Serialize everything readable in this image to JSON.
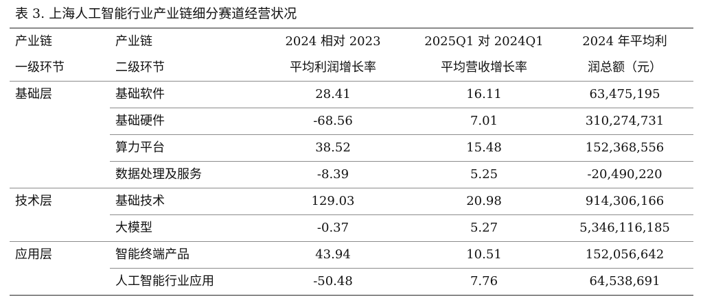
{
  "title": "表 3. 上海人工智能行业产业链细分赛道经营状况",
  "headers": {
    "row1": [
      "产业链",
      "产业链",
      "2024 相对 2023",
      "2025Q1 对 2024Q1",
      "2024 年平均利"
    ],
    "row2": [
      "一级环节",
      "二级环节",
      "平均利润增长率",
      "平均营收增长率",
      "润总额（元）"
    ]
  },
  "rows": [
    [
      "基础层",
      "基础软件",
      "28.41",
      "16.11",
      "63,475,195"
    ],
    [
      "",
      "基础硬件",
      "-68.56",
      "7.01",
      "310,274,731"
    ],
    [
      "",
      "算力平台",
      "38.52",
      "15.48",
      "152,368,556"
    ],
    [
      "",
      "数据处理及服务",
      "-8.39",
      "5.25",
      "-20,490,220"
    ],
    [
      "技术层",
      "基础技术",
      "129.03",
      "20.98",
      "914,306,166"
    ],
    [
      "",
      "大模型",
      "-0.37",
      "5.27",
      "5,346,116,185"
    ],
    [
      "应用层",
      "智能终端产品",
      "43.94",
      "10.51",
      "152,056,642"
    ],
    [
      "",
      "人工智能行业应用",
      "-50.48",
      "7.76",
      "64,538,691"
    ]
  ]
}
